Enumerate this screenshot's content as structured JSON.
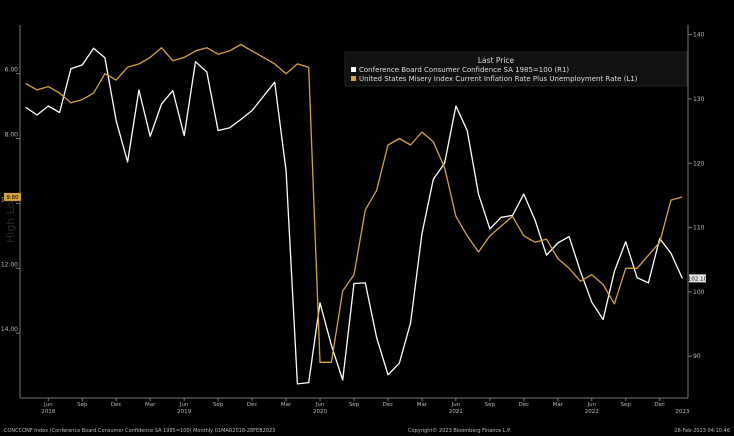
{
  "chart_data": {
    "type": "line",
    "legend": {
      "title": "Last Price",
      "placement": "top-right"
    },
    "x": [
      "2018-04",
      "2018-05",
      "2018-06",
      "2018-07",
      "2018-08",
      "2018-09",
      "2018-10",
      "2018-11",
      "2018-12",
      "2019-01",
      "2019-02",
      "2019-03",
      "2019-04",
      "2019-05",
      "2019-06",
      "2019-07",
      "2019-08",
      "2019-09",
      "2019-10",
      "2019-11",
      "2019-12",
      "2020-01",
      "2020-02",
      "2020-03",
      "2020-04",
      "2020-05",
      "2020-06",
      "2020-07",
      "2020-08",
      "2020-09",
      "2020-10",
      "2020-11",
      "2020-12",
      "2021-01",
      "2021-02",
      "2021-03",
      "2021-04",
      "2021-05",
      "2021-06",
      "2021-07",
      "2021-08",
      "2021-09",
      "2021-10",
      "2021-11",
      "2021-12",
      "2022-01",
      "2022-02",
      "2022-03",
      "2022-04",
      "2022-05",
      "2022-06",
      "2022-07",
      "2022-08",
      "2022-09",
      "2022-10",
      "2022-11",
      "2022-12",
      "2023-01",
      "2023-02"
    ],
    "series": [
      {
        "name": "Conference Board Consumer Confidence SA 1985=100 (R1)",
        "axis": "right",
        "color": "#ffffff",
        "last_label": "102.10",
        "values": [
          128.7,
          127.5,
          128.9,
          127.9,
          134.7,
          135.3,
          137.9,
          136.4,
          126.6,
          120.2,
          131.4,
          124.2,
          129.2,
          131.3,
          124.3,
          135.8,
          134.2,
          125.1,
          125.5,
          126.8,
          128.2,
          130.4,
          132.6,
          118.8,
          85.7,
          85.9,
          98.3,
          91.7,
          86.3,
          101.3,
          101.4,
          92.9,
          87.1,
          88.9,
          95.2,
          109.0,
          117.5,
          120.0,
          128.9,
          125.1,
          115.2,
          109.8,
          111.6,
          111.9,
          115.2,
          111.1,
          105.7,
          107.6,
          108.6,
          103.2,
          98.4,
          95.7,
          103.2,
          107.8,
          102.2,
          101.4,
          108.3,
          106.0,
          102.1
        ]
      },
      {
        "name": "United States Misery Index Current Inflation Rate Plus Unemployment Rate (L1)",
        "axis": "left",
        "color": "#d4a43c",
        "last_label": "9.80",
        "values": [
          6.3,
          6.5,
          6.4,
          6.6,
          6.9,
          6.8,
          6.6,
          6.0,
          6.2,
          5.8,
          5.7,
          5.5,
          5.2,
          5.6,
          5.5,
          5.3,
          5.2,
          5.4,
          5.3,
          5.1,
          5.3,
          5.5,
          5.7,
          6.0,
          5.7,
          5.8,
          14.9,
          14.9,
          12.7,
          12.2,
          10.2,
          9.6,
          8.2,
          8.0,
          8.2,
          7.8,
          8.1,
          8.9,
          10.4,
          11.0,
          11.5,
          11.0,
          10.7,
          10.4,
          11.0,
          11.2,
          11.1,
          11.7,
          12.0,
          12.4,
          12.2,
          12.5,
          13.1,
          12.0,
          12.0,
          11.6,
          11.2,
          9.9,
          9.8
        ]
      }
    ],
    "left_axis": {
      "ticks": [
        6.0,
        8.0,
        10.0,
        12.0,
        14.0
      ],
      "tick_labels": [
        "6.00",
        "8.00",
        "10.00",
        "12.00",
        "14.00"
      ],
      "range": [
        4.5,
        16.0
      ],
      "inverted": true
    },
    "right_axis": {
      "ticks": [
        90,
        100,
        110,
        120,
        130,
        140
      ],
      "range": [
        83.5,
        141.5
      ]
    },
    "x_ticks": {
      "month_labels": [
        "Jun",
        "Sep",
        "Dec",
        "Mar",
        "Jun",
        "Sep",
        "Dec",
        "Mar",
        "Jun",
        "Sep",
        "Dec",
        "Mar",
        "Jun",
        "Sep",
        "Dec",
        "Mar",
        "Jun",
        "Sep",
        "Dec"
      ],
      "month_index": [
        2,
        5,
        8,
        11,
        14,
        17,
        20,
        23,
        26,
        29,
        32,
        35,
        38,
        41,
        44,
        47,
        50,
        53,
        56
      ],
      "year_labels": [
        "2018",
        "2019",
        "2020",
        "2021",
        "2022",
        "2023"
      ],
      "year_index": [
        2,
        14,
        26,
        38,
        50,
        58
      ]
    },
    "watermark": "High  Low",
    "grid": false
  },
  "footer": {
    "left": "CONCCONF Index (Conference Board Consumer Confidence SA 1985=100) Monthly 01MAR2018-28FEB2023",
    "mid": "Copyright© 2023 Bloomberg Finance L.P.",
    "right": "28-Feb-2023 04:10:46"
  }
}
